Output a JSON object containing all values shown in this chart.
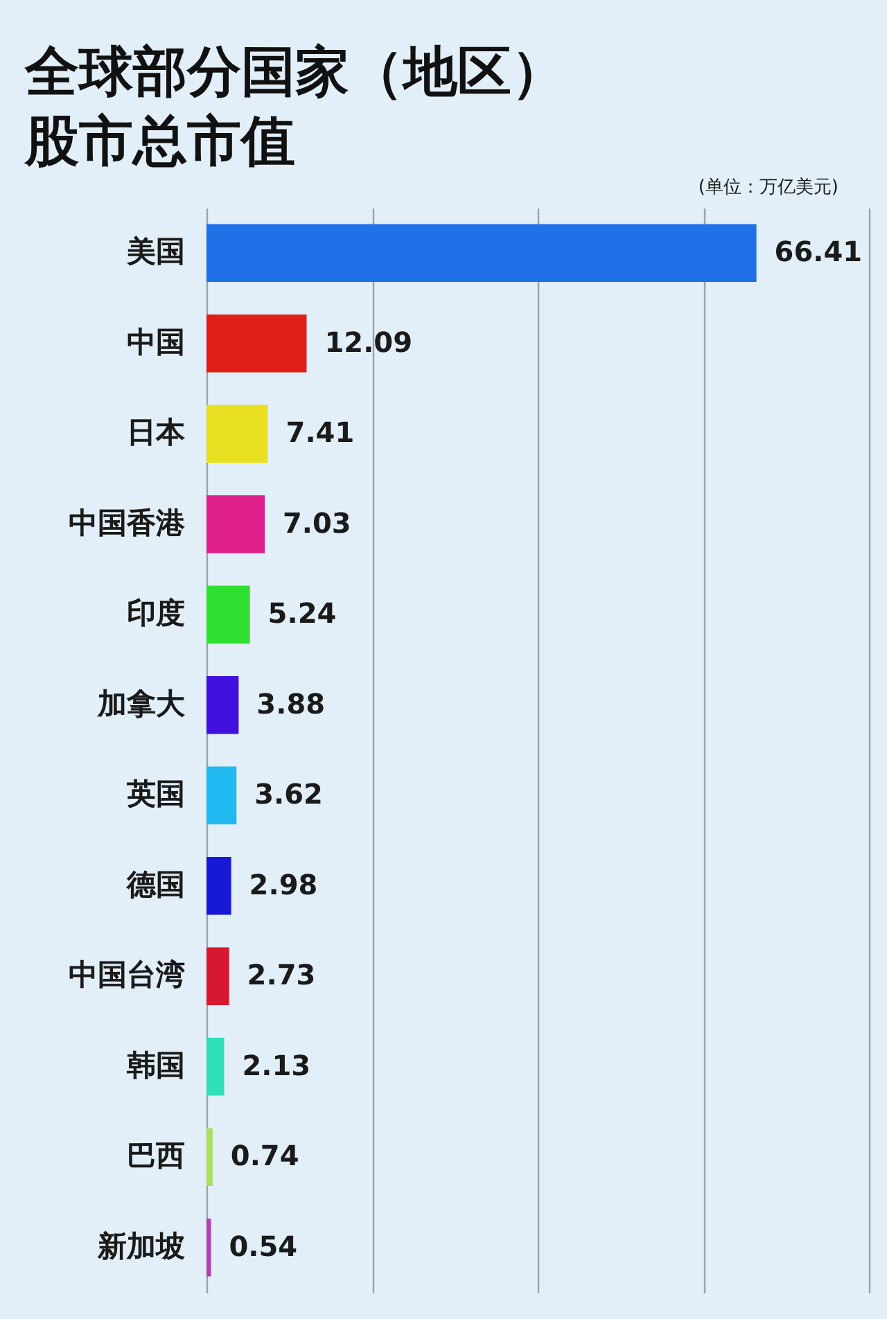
{
  "chart_data": {
    "type": "bar",
    "orientation": "horizontal",
    "title": "全球部分国家（地区）股市总市值",
    "annotations": [
      "(单位：万亿美元)"
    ],
    "categories": [
      "美国",
      "中国",
      "日本",
      "中国香港",
      "印度",
      "加拿大",
      "英国",
      "德国",
      "中国台湾",
      "韩国",
      "巴西",
      "新加坡"
    ],
    "values": [
      66.41,
      12.09,
      7.41,
      7.03,
      5.24,
      3.88,
      3.62,
      2.98,
      2.73,
      2.13,
      0.74,
      0.54
    ],
    "colors": [
      "#2070e8",
      "#e01e18",
      "#e8e020",
      "#e0208a",
      "#30e030",
      "#4010e0",
      "#20b8f0",
      "#1818d8",
      "#d81830",
      "#30e0b8",
      "#a8e060",
      "#b040b0"
    ],
    "xlim": [
      0,
      80
    ],
    "xticks": [
      {
        "value": 0,
        "label": null
      },
      {
        "value": 20,
        "label": null
      },
      {
        "value": 40,
        "label": null
      },
      {
        "value": 60,
        "label": null
      },
      {
        "value": 80,
        "label": null
      }
    ],
    "grid": "x",
    "tick_labels": "y",
    "data_labels": true
  }
}
